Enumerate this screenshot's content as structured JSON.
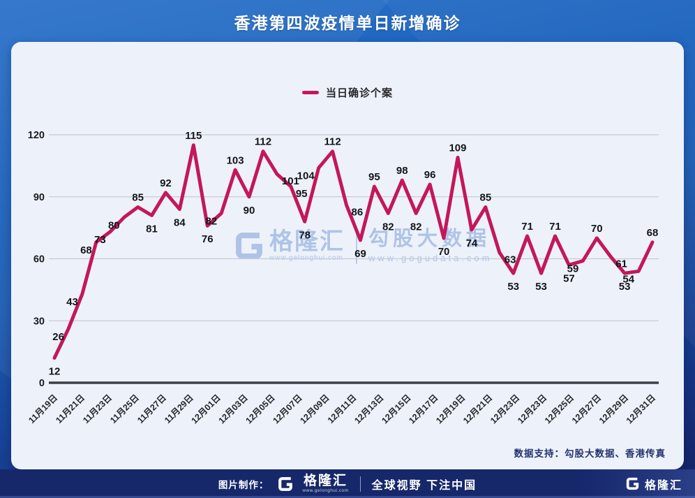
{
  "title": "香港第四波疫情单日新增确诊",
  "legend": {
    "label": "当日确诊个案"
  },
  "chart_data": {
    "type": "line",
    "title": "香港第四波疫情单日新增确诊",
    "series": [
      {
        "name": "当日确诊个案",
        "color": "#c4175a",
        "values": [
          12,
          26,
          43,
          68,
          73,
          80,
          85,
          81,
          92,
          84,
          115,
          76,
          82,
          103,
          90,
          112,
          101,
          95,
          78,
          104,
          112,
          86,
          69,
          95,
          82,
          98,
          82,
          96,
          70,
          109,
          74,
          85,
          63,
          53,
          71,
          53,
          71,
          57,
          59,
          70,
          61,
          53,
          54,
          68
        ]
      }
    ],
    "x_tick_labels": [
      "11月19日",
      "11月21日",
      "11月23日",
      "11月25日",
      "11月27日",
      "11月29日",
      "12月01日",
      "12月03日",
      "12月05日",
      "12月07日",
      "12月09日",
      "12月11日",
      "12月13日",
      "12月15日",
      "12月17日",
      "12月19日",
      "12月21日",
      "12月23日",
      "12月23日",
      "12月25日",
      "12月27日",
      "12月29日",
      "12月31日"
    ],
    "yticks": [
      0,
      30,
      60,
      90,
      120
    ],
    "ylim": [
      0,
      120
    ],
    "grid": true,
    "legend_position": "top-center",
    "point_labels_shown": true
  },
  "watermark": {
    "left_brand": "格隆汇",
    "left_url": "www.gelonghui.com",
    "right_brand": "勾股大数据",
    "right_url": "www.gogudata.com"
  },
  "card": {
    "data_support": "数据支持：勾股大数据、香港传真"
  },
  "footer": {
    "made_by": "图片制作：",
    "brand": "格隆汇",
    "brand_url": "www.gelonghui.com",
    "slogan": "全球视野 下注中国",
    "corner_brand": "格隆汇"
  },
  "colors": {
    "line": "#c4175a",
    "header_blue": "#1b63be",
    "footer_navy": "#16276a",
    "card_bg": "#edf2fa"
  }
}
